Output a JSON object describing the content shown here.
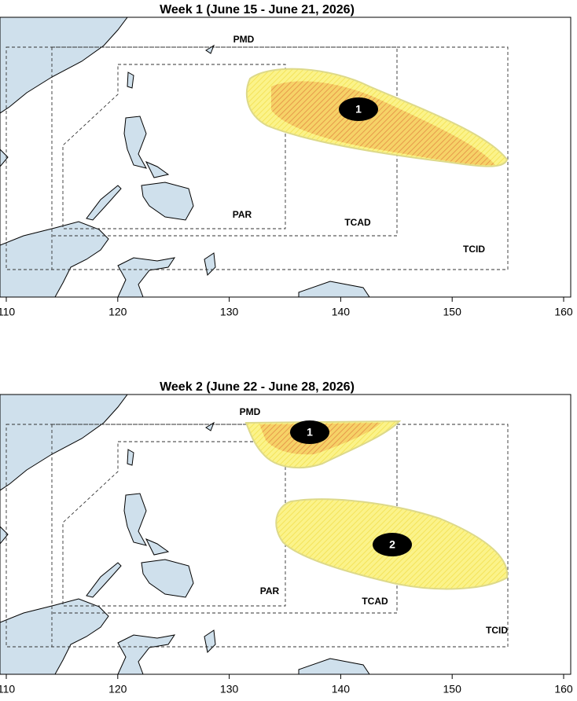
{
  "panels": [
    {
      "title": "Week 1 (June 15 - June 21, 2026)",
      "regions": [
        "PMD",
        "PAR",
        "TCAD",
        "TCID"
      ],
      "areas": [
        "1"
      ]
    },
    {
      "title": "Week 2 (June 22 - June 28, 2026)",
      "regions": [
        "PMD",
        "PAR",
        "TCAD",
        "TCID"
      ],
      "areas": [
        "1",
        "2"
      ]
    }
  ],
  "xticks": [
    110,
    120,
    130,
    140,
    150,
    160
  ]
}
